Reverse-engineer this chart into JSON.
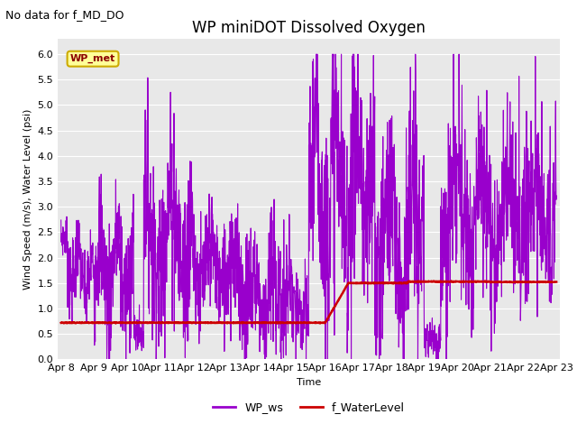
{
  "title": "WP miniDOT Dissolved Oxygen",
  "subtitle": "No data for f_MD_DO",
  "xlabel": "Time",
  "ylabel": "Wind Speed (m/s), Water Level (psi)",
  "ylim": [
    0.0,
    6.3
  ],
  "xtick_labels": [
    "Apr 8",
    "Apr 9",
    "Apr 10",
    "Apr 11",
    "Apr 12",
    "Apr 13",
    "Apr 14",
    "Apr 15",
    "Apr 16",
    "Apr 17",
    "Apr 18",
    "Apr 19",
    "Apr 20",
    "Apr 21",
    "Apr 22",
    "Apr 23"
  ],
  "ytick_values": [
    0.0,
    0.5,
    1.0,
    1.5,
    2.0,
    2.5,
    3.0,
    3.5,
    4.0,
    4.5,
    5.0,
    5.5,
    6.0
  ],
  "wp_ws_color": "#9900CC",
  "f_wl_color": "#CC0000",
  "bg_color": "#E8E8E8",
  "legend_box_color": "#FFFF99",
  "legend_box_border": "#CCAA00",
  "wp_met_label": "WP_met",
  "legend_ws_label": "WP_ws",
  "legend_wl_label": "f_WaterLevel",
  "linewidth_ws": 0.8,
  "linewidth_wl": 1.8,
  "title_fontsize": 12,
  "subtitle_fontsize": 9,
  "axis_label_fontsize": 8,
  "tick_fontsize": 8
}
